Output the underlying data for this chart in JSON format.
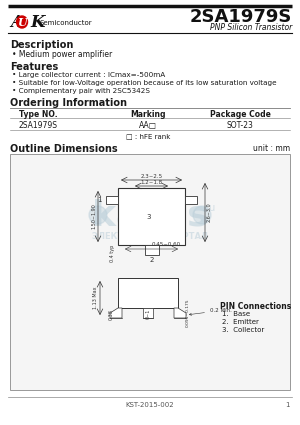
{
  "title": "2SA1979S",
  "subtitle": "PNP Silicon Transistor",
  "logo_semi": "Semiconductor",
  "desc_header": "Description",
  "desc_bullet": "Medium power amplifier",
  "feat_header": "Features",
  "feat_bullets": [
    "Large collector current : ICmax=-500mA",
    "Suitable for low-Voltage operation because of its low saturation voltage",
    "Complementary pair with 2SC5342S"
  ],
  "order_header": "Ordering Information",
  "order_cols": [
    "Type NO.",
    "Marking",
    "Package Code"
  ],
  "order_row": [
    "2SA1979S",
    "AA□",
    "SOT-23"
  ],
  "order_note": "□ : hFE rank",
  "outline_header": "Outline Dimensions",
  "outline_unit": "unit : mm",
  "pin_header": "PIN Connections",
  "pin_list": [
    "1.  Base",
    "2.  Emitter",
    "3.  Collector"
  ],
  "footer": "KST-2015-002",
  "footer_page": "1",
  "bg_color": "#ffffff",
  "text_color": "#1a1a1a",
  "logo_oval_color": "#cc0000",
  "dim_color": "#333333",
  "watermark_color": "#b8cdd8",
  "box_edge_color": "#999999"
}
